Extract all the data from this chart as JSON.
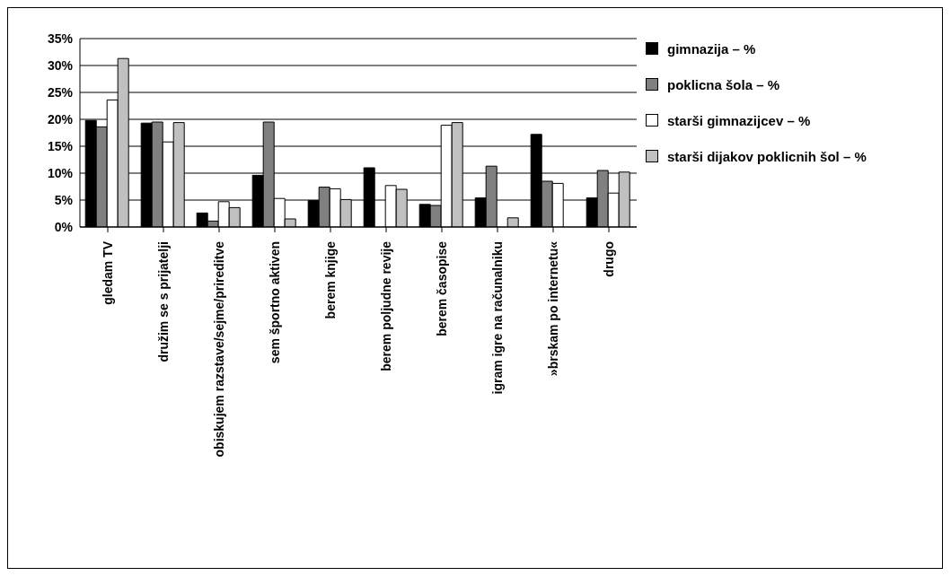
{
  "chart_data": {
    "type": "bar",
    "categories": [
      "gledam TV",
      "družim se s prijatelji",
      "obiskujem razstave/sejme/prireditve",
      "sem športno aktiven",
      "berem knjige",
      "berem poljudne revije",
      "berem časopise",
      "igram igre na računalniku",
      "»brskam po internetu«",
      "drugo"
    ],
    "series": [
      {
        "name": "gimnazija – %",
        "color": "#000000",
        "values": [
          19.8,
          19.3,
          2.6,
          9.6,
          4.9,
          11.0,
          4.2,
          5.4,
          17.2,
          5.4
        ]
      },
      {
        "name": "poklicna šola – %",
        "color": "#808080",
        "values": [
          18.6,
          19.5,
          1.1,
          19.5,
          7.4,
          0,
          4.0,
          11.3,
          8.5,
          10.5
        ]
      },
      {
        "name": "starši gimnazijcev – %",
        "color": "#ffffff",
        "values": [
          23.6,
          15.8,
          4.7,
          5.3,
          7.1,
          7.7,
          18.9,
          0,
          8.1,
          6.3
        ]
      },
      {
        "name": "starši dijakov poklicnih šol – %",
        "color": "#c0c0c0",
        "values": [
          31.3,
          19.4,
          3.6,
          1.5,
          5.1,
          7.0,
          19.4,
          1.7,
          0,
          10.2
        ]
      }
    ],
    "ylim": [
      0,
      35
    ],
    "yticks": [
      {
        "value": 0,
        "label": "0%"
      },
      {
        "value": 5,
        "label": "5%"
      },
      {
        "value": 10,
        "label": "10%"
      },
      {
        "value": 15,
        "label": "15%"
      },
      {
        "value": 20,
        "label": "20%"
      },
      {
        "value": 25,
        "label": "25%"
      },
      {
        "value": 30,
        "label": "30%"
      },
      {
        "value": 35,
        "label": "35%"
      }
    ],
    "grid": "y",
    "legend": "top right"
  }
}
